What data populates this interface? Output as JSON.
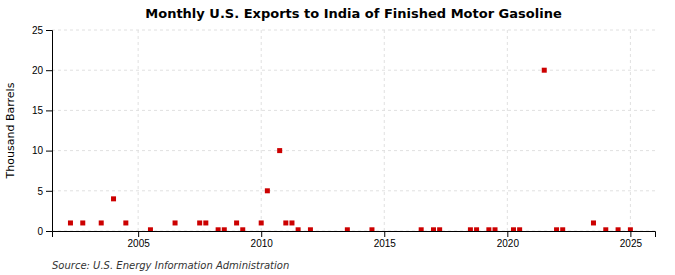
{
  "chart_data": {
    "type": "scatter",
    "title": "Monthly U.S. Exports to India of Finished Motor Gasoline",
    "ylabel": "Thousand Barrels",
    "source": "Source: U.S. Energy Information Administration",
    "color": "#cc0000",
    "marker": "square",
    "grid": true,
    "xlim": [
      2001.5,
      2026.0
    ],
    "xticks": [
      2005,
      2010,
      2015,
      2020,
      2025
    ],
    "ylim": [
      0,
      25
    ],
    "yticks": [
      0,
      5,
      10,
      15,
      20,
      25
    ],
    "x": [
      2002.25,
      2002.75,
      2003.5,
      2004.0,
      2004.5,
      2005.5,
      2006.5,
      2007.5,
      2007.75,
      2008.25,
      2008.5,
      2009.0,
      2009.25,
      2010.0,
      2010.25,
      2010.75,
      2011.0,
      2011.25,
      2011.5,
      2012.0,
      2013.5,
      2014.5,
      2016.5,
      2017.0,
      2017.25,
      2018.5,
      2018.75,
      2019.25,
      2019.5,
      2020.25,
      2020.5,
      2021.5,
      2022.0,
      2022.25,
      2023.5,
      2024.0,
      2024.5,
      2025.0
    ],
    "values": [
      1,
      1,
      1,
      4,
      1,
      0.15,
      1,
      1,
      1,
      0.15,
      0.15,
      1,
      0.15,
      1,
      5,
      10,
      1,
      1,
      0.15,
      0.15,
      0.15,
      0.15,
      0.15,
      0.15,
      0.15,
      0.15,
      0.15,
      0.15,
      0.15,
      0.15,
      0.15,
      20,
      0.15,
      0.15,
      1,
      0.15,
      0.15,
      0.15
    ]
  }
}
